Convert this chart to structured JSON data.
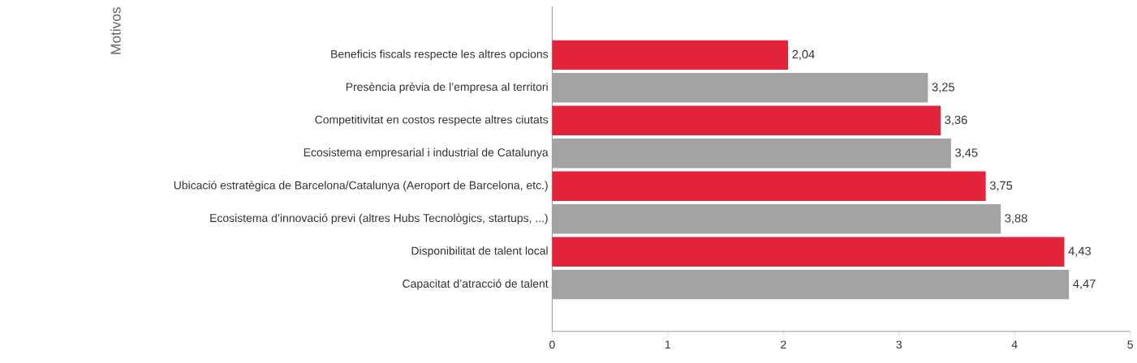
{
  "chart_data": {
    "type": "bar",
    "orientation": "horizontal",
    "annotations": [
      "Motivos"
    ],
    "legend": false,
    "categories": [
      "Beneficis fiscals respecte les altres opcions",
      "Presència prèvia de l’empresa al territori",
      "Competitivitat en costos respecte altres ciutats",
      "Ecosistema empresarial i industrial de Catalunya",
      "Ubicació estratègica de Barcelona/Catalunya (Aeroport de Barcelona, etc.)",
      "Ecosistema d’innovació previ (altres Hubs Tecnològics, startups, ...)",
      "Disponibilitat de talent local",
      "Capacitat d’atracció de talent"
    ],
    "values": [
      2.04,
      3.25,
      3.36,
      3.45,
      3.75,
      3.88,
      4.43,
      4.47
    ],
    "value_labels": [
      "2,04",
      "3,25",
      "3,36",
      "3,45",
      "3,75",
      "3,88",
      "4,43",
      "4,47"
    ],
    "colors": [
      "#e2233a",
      "#a3a3a3",
      "#e2233a",
      "#a3a3a3",
      "#e2233a",
      "#a3a3a3",
      "#e2233a",
      "#a3a3a3"
    ],
    "xlim": [
      0,
      5
    ],
    "xticks": [
      0,
      1,
      2,
      3,
      4,
      5
    ],
    "grid": false
  }
}
